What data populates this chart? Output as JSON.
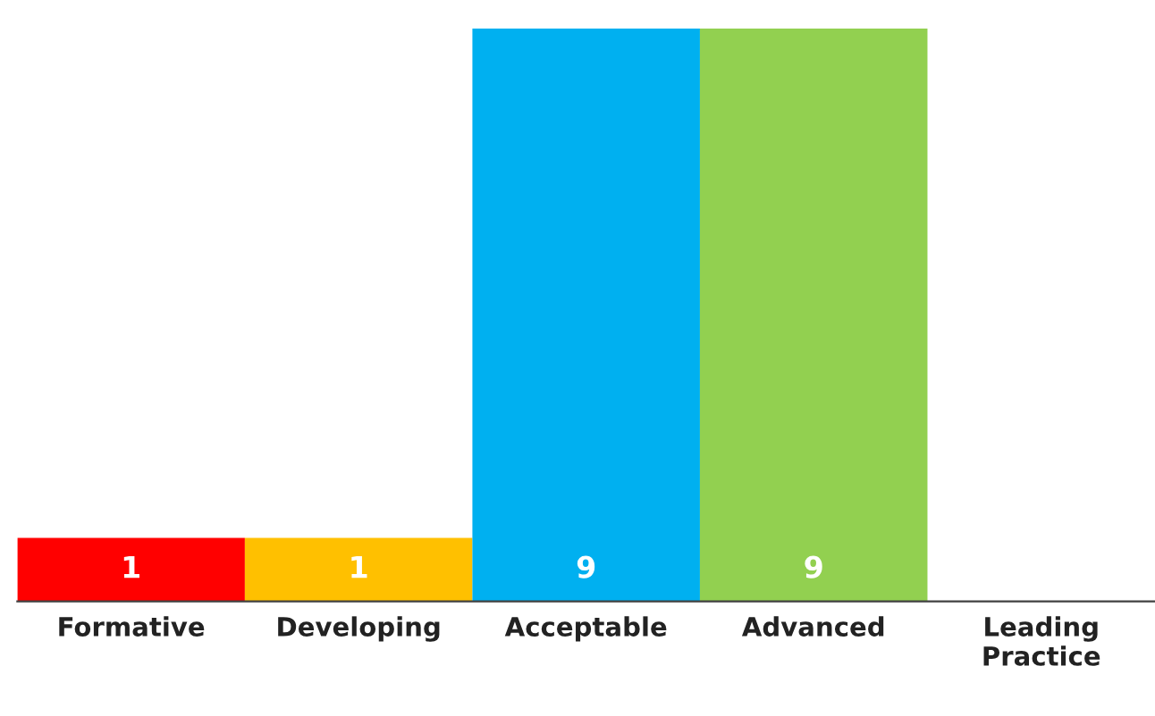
{
  "chart_data": {
    "type": "bar",
    "categories": [
      "Formative",
      "Developing",
      "Acceptable",
      "Advanced",
      "Leading Practice"
    ],
    "values": [
      1,
      1,
      9,
      9,
      null
    ],
    "colors": [
      "#ff0000",
      "#ffc000",
      "#00b0f0",
      "#92d050",
      "#808080"
    ],
    "data_labels": true,
    "grid": false,
    "legend": false
  }
}
